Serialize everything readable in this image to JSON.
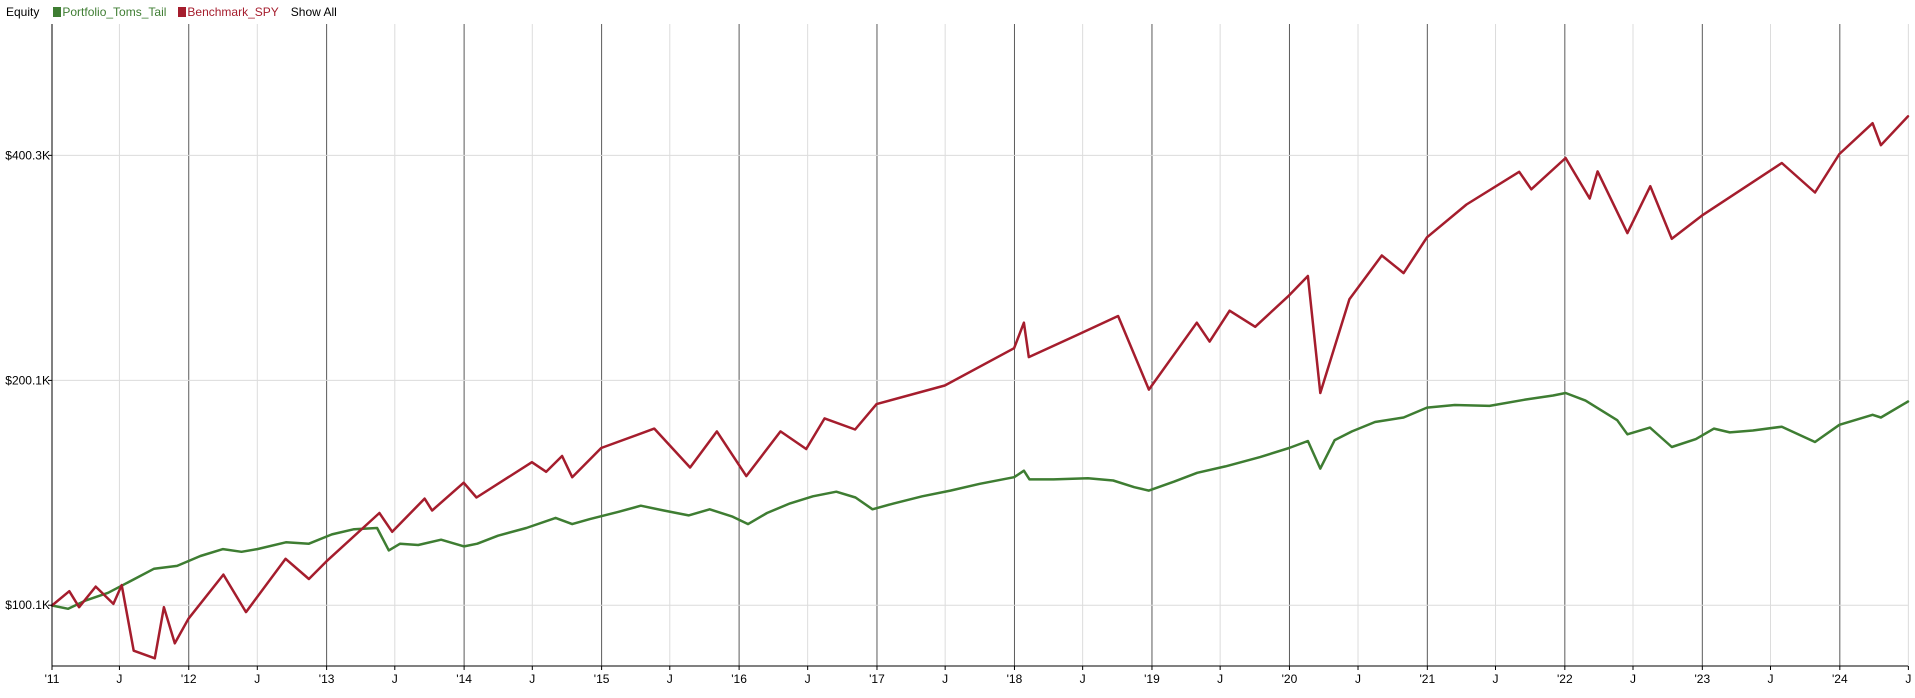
{
  "legend": {
    "title": "Equity",
    "show_all_label": "Show All"
  },
  "chart_data": {
    "type": "line",
    "title": "Equity",
    "xlabel": "",
    "ylabel": "",
    "y_scale": "log",
    "xlim": [
      "2011-01-03",
      "2024-06-30"
    ],
    "ylim": [
      83000,
      600000
    ],
    "grid": true,
    "legend_placement": "top-left",
    "y_ticks": [
      {
        "value": 100100,
        "label": "$100.1K"
      },
      {
        "value": 200100,
        "label": "$200.1K"
      },
      {
        "value": 400300,
        "label": "$400.3K"
      }
    ],
    "x_ticks": [
      {
        "date": "2011-01-03",
        "label": "'11",
        "major": true
      },
      {
        "date": "2011-07-01",
        "label": "J",
        "major": false
      },
      {
        "date": "2012-01-01",
        "label": "'12",
        "major": true
      },
      {
        "date": "2012-07-01",
        "label": "J",
        "major": false
      },
      {
        "date": "2013-01-01",
        "label": "'13",
        "major": true
      },
      {
        "date": "2013-07-01",
        "label": "J",
        "major": false
      },
      {
        "date": "2014-01-01",
        "label": "'14",
        "major": true
      },
      {
        "date": "2014-07-01",
        "label": "J",
        "major": false
      },
      {
        "date": "2015-01-01",
        "label": "'15",
        "major": true
      },
      {
        "date": "2015-07-01",
        "label": "J",
        "major": false
      },
      {
        "date": "2016-01-01",
        "label": "'16",
        "major": true
      },
      {
        "date": "2016-07-01",
        "label": "J",
        "major": false
      },
      {
        "date": "2017-01-01",
        "label": "'17",
        "major": true
      },
      {
        "date": "2017-07-01",
        "label": "J",
        "major": false
      },
      {
        "date": "2018-01-01",
        "label": "'18",
        "major": true
      },
      {
        "date": "2018-07-01",
        "label": "J",
        "major": false
      },
      {
        "date": "2019-01-01",
        "label": "'19",
        "major": true
      },
      {
        "date": "2019-07-01",
        "label": "J",
        "major": false
      },
      {
        "date": "2020-01-01",
        "label": "'20",
        "major": true
      },
      {
        "date": "2020-07-01",
        "label": "J",
        "major": false
      },
      {
        "date": "2021-01-01",
        "label": "'21",
        "major": true
      },
      {
        "date": "2021-07-01",
        "label": "J",
        "major": false
      },
      {
        "date": "2022-01-01",
        "label": "'22",
        "major": true
      },
      {
        "date": "2022-07-01",
        "label": "J",
        "major": false
      },
      {
        "date": "2023-01-01",
        "label": "'23",
        "major": true
      },
      {
        "date": "2023-07-01",
        "label": "J",
        "major": false
      },
      {
        "date": "2024-01-01",
        "label": "'24",
        "major": true
      },
      {
        "date": "2024-07-01",
        "label": "J",
        "major": false
      }
    ],
    "series": [
      {
        "name": "Portfolio_Toms_Tail",
        "color": "#3e7d32",
        "points": [
          [
            "2011-01-03",
            100000
          ],
          [
            "2011-02-15",
            99000
          ],
          [
            "2011-04-01",
            101500
          ],
          [
            "2011-06-01",
            104000
          ],
          [
            "2011-08-10",
            108500
          ],
          [
            "2011-10-01",
            112000
          ],
          [
            "2011-12-01",
            113000
          ],
          [
            "2012-02-01",
            116500
          ],
          [
            "2012-04-01",
            119000
          ],
          [
            "2012-05-20",
            118000
          ],
          [
            "2012-07-01",
            119000
          ],
          [
            "2012-09-15",
            121500
          ],
          [
            "2012-11-15",
            121000
          ],
          [
            "2013-01-15",
            124500
          ],
          [
            "2013-03-15",
            126500
          ],
          [
            "2013-05-15",
            127000
          ],
          [
            "2013-06-15",
            118500
          ],
          [
            "2013-07-15",
            121000
          ],
          [
            "2013-09-01",
            120500
          ],
          [
            "2013-11-01",
            122500
          ],
          [
            "2014-01-01",
            120000
          ],
          [
            "2014-02-05",
            121000
          ],
          [
            "2014-04-01",
            124000
          ],
          [
            "2014-06-15",
            127000
          ],
          [
            "2014-09-01",
            131000
          ],
          [
            "2014-10-15",
            128500
          ],
          [
            "2014-12-01",
            130500
          ],
          [
            "2015-02-15",
            133500
          ],
          [
            "2015-04-15",
            136000
          ],
          [
            "2015-06-15",
            134000
          ],
          [
            "2015-08-20",
            132000
          ],
          [
            "2015-10-15",
            134500
          ],
          [
            "2015-12-15",
            131500
          ],
          [
            "2016-01-25",
            128500
          ],
          [
            "2016-03-15",
            133000
          ],
          [
            "2016-05-15",
            137000
          ],
          [
            "2016-07-15",
            140000
          ],
          [
            "2016-09-15",
            142000
          ],
          [
            "2016-11-05",
            139500
          ],
          [
            "2016-12-20",
            134500
          ],
          [
            "2017-02-15",
            137000
          ],
          [
            "2017-05-01",
            140000
          ],
          [
            "2017-07-15",
            142500
          ],
          [
            "2017-10-01",
            145500
          ],
          [
            "2017-12-31",
            148500
          ],
          [
            "2018-01-26",
            151500
          ],
          [
            "2018-02-10",
            147500
          ],
          [
            "2018-04-15",
            147500
          ],
          [
            "2018-07-15",
            148000
          ],
          [
            "2018-09-20",
            147000
          ],
          [
            "2018-11-15",
            144000
          ],
          [
            "2018-12-24",
            142500
          ],
          [
            "2019-03-01",
            146500
          ],
          [
            "2019-05-01",
            150500
          ],
          [
            "2019-07-15",
            153500
          ],
          [
            "2019-10-15",
            158000
          ],
          [
            "2019-12-31",
            162500
          ],
          [
            "2020-02-19",
            166000
          ],
          [
            "2020-03-23",
            152500
          ],
          [
            "2020-04-30",
            166500
          ],
          [
            "2020-06-15",
            171000
          ],
          [
            "2020-08-15",
            176000
          ],
          [
            "2020-10-30",
            178500
          ],
          [
            "2020-12-31",
            184000
          ],
          [
            "2021-03-15",
            185500
          ],
          [
            "2021-06-15",
            185000
          ],
          [
            "2021-09-15",
            188500
          ],
          [
            "2021-12-01",
            191000
          ],
          [
            "2022-01-03",
            192500
          ],
          [
            "2022-02-25",
            188000
          ],
          [
            "2022-05-20",
            177000
          ],
          [
            "2022-06-16",
            169500
          ],
          [
            "2022-08-15",
            173000
          ],
          [
            "2022-10-12",
            163000
          ],
          [
            "2022-12-15",
            167000
          ],
          [
            "2023-02-01",
            172500
          ],
          [
            "2023-03-15",
            170500
          ],
          [
            "2023-05-15",
            171500
          ],
          [
            "2023-07-31",
            173500
          ],
          [
            "2023-10-27",
            165500
          ],
          [
            "2023-12-31",
            174500
          ],
          [
            "2024-03-28",
            180000
          ],
          [
            "2024-04-19",
            178500
          ],
          [
            "2024-06-30",
            187500
          ]
        ]
      },
      {
        "name": "Benchmark_SPY",
        "color": "#a51d2d",
        "points": [
          [
            "2011-01-03",
            100000
          ],
          [
            "2011-02-18",
            104500
          ],
          [
            "2011-03-16",
            99500
          ],
          [
            "2011-04-29",
            106000
          ],
          [
            "2011-06-15",
            100500
          ],
          [
            "2011-07-07",
            106500
          ],
          [
            "2011-08-08",
            87000
          ],
          [
            "2011-10-03",
            85000
          ],
          [
            "2011-10-27",
            99500
          ],
          [
            "2011-11-25",
            89000
          ],
          [
            "2011-12-31",
            96000
          ],
          [
            "2012-04-02",
            110000
          ],
          [
            "2012-06-01",
            98000
          ],
          [
            "2012-09-14",
            115500
          ],
          [
            "2012-11-15",
            108500
          ],
          [
            "2012-12-31",
            114500
          ],
          [
            "2013-05-21",
            133000
          ],
          [
            "2013-06-24",
            125500
          ],
          [
            "2013-09-18",
            139000
          ],
          [
            "2013-10-08",
            134000
          ],
          [
            "2013-12-31",
            146000
          ],
          [
            "2014-02-03",
            139500
          ],
          [
            "2014-06-30",
            155500
          ],
          [
            "2014-08-07",
            151000
          ],
          [
            "2014-09-18",
            158500
          ],
          [
            "2014-10-15",
            148500
          ],
          [
            "2014-12-31",
            162500
          ],
          [
            "2015-05-21",
            172500
          ],
          [
            "2015-08-24",
            153000
          ],
          [
            "2015-11-03",
            171000
          ],
          [
            "2016-01-20",
            149000
          ],
          [
            "2016-04-20",
            171000
          ],
          [
            "2016-06-27",
            162000
          ],
          [
            "2016-08-15",
            178000
          ],
          [
            "2016-11-04",
            172000
          ],
          [
            "2016-12-31",
            186000
          ],
          [
            "2017-06-30",
            197000
          ],
          [
            "2017-12-31",
            221000
          ],
          [
            "2018-01-26",
            239000
          ],
          [
            "2018-02-08",
            215000
          ],
          [
            "2018-06-15",
            230000
          ],
          [
            "2018-10-03",
            244000
          ],
          [
            "2018-12-24",
            194500
          ],
          [
            "2019-04-30",
            239000
          ],
          [
            "2019-06-03",
            225500
          ],
          [
            "2019-07-26",
            248000
          ],
          [
            "2019-10-02",
            236000
          ],
          [
            "2019-12-31",
            260000
          ],
          [
            "2020-02-19",
            276000
          ],
          [
            "2020-03-23",
            192500
          ],
          [
            "2020-06-08",
            257000
          ],
          [
            "2020-09-02",
            294000
          ],
          [
            "2020-10-30",
            278500
          ],
          [
            "2020-12-31",
            311000
          ],
          [
            "2021-04-15",
            344000
          ],
          [
            "2021-09-02",
            380500
          ],
          [
            "2021-10-04",
            360500
          ],
          [
            "2022-01-03",
            397000
          ],
          [
            "2022-03-08",
            350500
          ],
          [
            "2022-03-29",
            381000
          ],
          [
            "2022-06-16",
            315000
          ],
          [
            "2022-08-16",
            364000
          ],
          [
            "2022-10-12",
            309500
          ],
          [
            "2022-12-31",
            332500
          ],
          [
            "2023-07-31",
            391000
          ],
          [
            "2023-10-27",
            357000
          ],
          [
            "2023-12-31",
            402000
          ],
          [
            "2024-03-28",
            442000
          ],
          [
            "2024-04-19",
            413000
          ],
          [
            "2024-06-30",
            451500
          ]
        ]
      }
    ]
  }
}
